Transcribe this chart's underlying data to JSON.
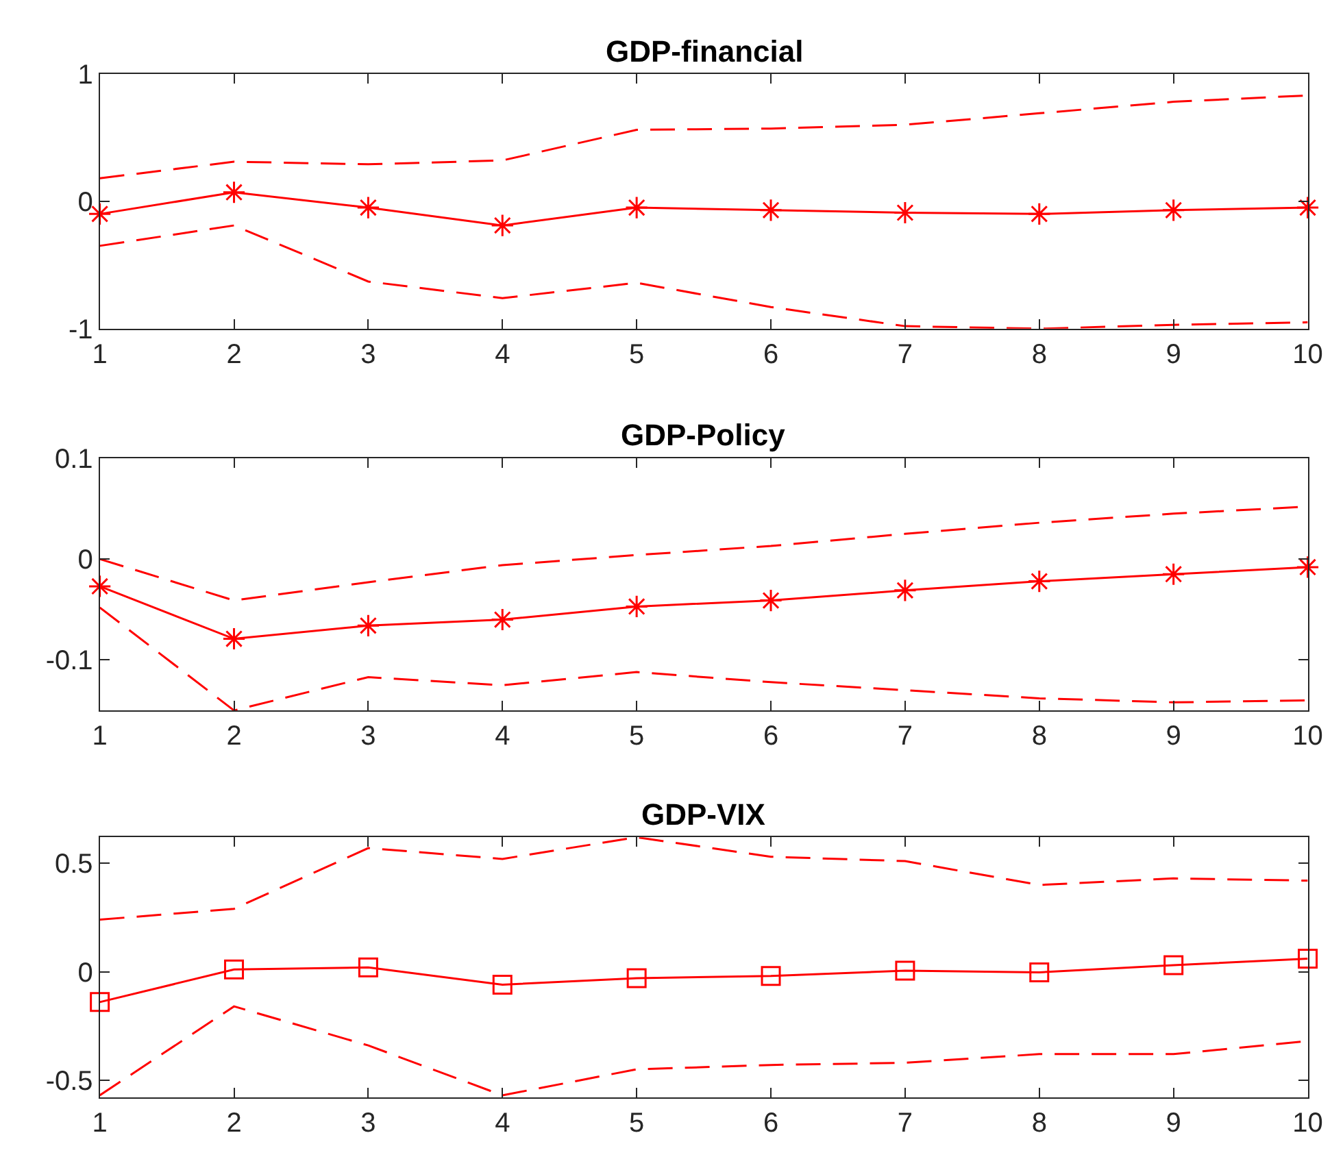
{
  "chart_data": [
    {
      "type": "line",
      "title": "GDP-financial",
      "x": [
        1,
        2,
        3,
        4,
        5,
        6,
        7,
        8,
        9,
        10
      ],
      "xlim": [
        1,
        10
      ],
      "xticks": [
        1,
        2,
        3,
        4,
        5,
        6,
        7,
        8,
        9,
        10
      ],
      "ylim": [
        -1,
        1
      ],
      "yticks": [
        -1,
        0,
        1
      ],
      "series": [
        {
          "color": "#ff0000",
          "line_style": "dashed",
          "marker": "none",
          "values": [
            0.18,
            0.31,
            0.29,
            0.32,
            0.56,
            0.57,
            0.6,
            0.69,
            0.78,
            0.83
          ]
        },
        {
          "color": "#ff0000",
          "line_style": "solid",
          "marker": "cross",
          "values": [
            -0.1,
            0.07,
            -0.05,
            -0.19,
            -0.05,
            -0.07,
            -0.09,
            -0.1,
            -0.07,
            -0.05
          ]
        },
        {
          "color": "#ff0000",
          "line_style": "dashed",
          "marker": "none",
          "values": [
            -0.35,
            -0.19,
            -0.63,
            -0.76,
            -0.64,
            -0.83,
            -0.98,
            -1.0,
            -0.97,
            -0.95
          ]
        }
      ]
    },
    {
      "type": "line",
      "title": "GDP-Policy",
      "x": [
        1,
        2,
        3,
        4,
        5,
        6,
        7,
        8,
        9,
        10
      ],
      "xlim": [
        1,
        10
      ],
      "xticks": [
        1,
        2,
        3,
        4,
        5,
        6,
        7,
        8,
        9,
        10
      ],
      "ylim": [
        -0.15,
        0.1
      ],
      "yticks": [
        -0.1,
        0,
        0.1
      ],
      "series": [
        {
          "color": "#ff0000",
          "line_style": "dashed",
          "marker": "none",
          "values": [
            0.0,
            -0.041,
            -0.023,
            -0.006,
            0.004,
            0.013,
            0.025,
            0.036,
            0.045,
            0.052
          ]
        },
        {
          "color": "#ff0000",
          "line_style": "solid",
          "marker": "cross",
          "values": [
            -0.027,
            -0.079,
            -0.066,
            -0.06,
            -0.047,
            -0.041,
            -0.031,
            -0.022,
            -0.015,
            -0.008
          ]
        },
        {
          "color": "#ff0000",
          "line_style": "dashed",
          "marker": "none",
          "values": [
            -0.048,
            -0.15,
            -0.117,
            -0.125,
            -0.112,
            -0.122,
            -0.13,
            -0.138,
            -0.142,
            -0.14
          ]
        }
      ]
    },
    {
      "type": "line",
      "title": "GDP-VIX",
      "x": [
        1,
        2,
        3,
        4,
        5,
        6,
        7,
        8,
        9,
        10
      ],
      "xlim": [
        1,
        10
      ],
      "xticks": [
        1,
        2,
        3,
        4,
        5,
        6,
        7,
        8,
        9,
        10
      ],
      "ylim": [
        -0.58,
        0.62
      ],
      "yticks": [
        -0.5,
        0,
        0.5
      ],
      "series": [
        {
          "color": "#ff0000",
          "line_style": "dashed",
          "marker": "none",
          "values": [
            0.24,
            0.29,
            0.57,
            0.52,
            0.62,
            0.53,
            0.51,
            0.4,
            0.43,
            0.42
          ]
        },
        {
          "color": "#ff0000",
          "line_style": "solid",
          "marker": "square",
          "values": [
            -0.14,
            0.01,
            0.02,
            -0.06,
            -0.03,
            -0.02,
            0.005,
            -0.003,
            0.03,
            0.06
          ]
        },
        {
          "color": "#ff0000",
          "line_style": "dashed",
          "marker": "none",
          "values": [
            -0.57,
            -0.16,
            -0.34,
            -0.57,
            -0.45,
            -0.43,
            -0.42,
            -0.38,
            -0.38,
            -0.32
          ]
        }
      ]
    }
  ]
}
